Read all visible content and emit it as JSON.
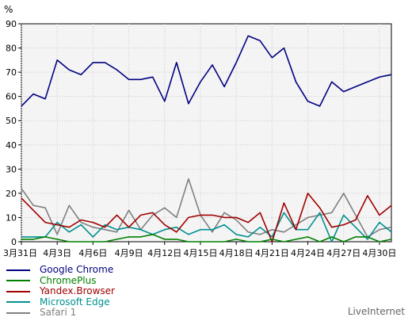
{
  "chart_data": {
    "type": "line",
    "title": "",
    "ylabel": "%",
    "xlabel": "",
    "ylim": [
      0,
      90
    ],
    "yticks": [
      0,
      10,
      20,
      30,
      40,
      50,
      60,
      70,
      80,
      90
    ],
    "grid": true,
    "x": [
      "3月31日",
      "4月1日",
      "4月2日",
      "4月3日",
      "4月4日",
      "4月5日",
      "4月6日",
      "4月7日",
      "4月8日",
      "4月9日",
      "4月10日",
      "4月11日",
      "4月12日",
      "4月13日",
      "4月14日",
      "4月15日",
      "4月16日",
      "4月17日",
      "4月18日",
      "4月19日",
      "4月20日",
      "4月21日",
      "4月22日",
      "4月23日",
      "4月24日",
      "4月25日",
      "4月26日",
      "4月27日",
      "4月28日",
      "4月29日",
      "4月30日",
      "5月1日"
    ],
    "xtick_labels": [
      "3月31日",
      "4月3日",
      "4月6日",
      "4月9日",
      "4月12日",
      "4月15日",
      "4月18日",
      "4月21日",
      "4月24日",
      "4月27日",
      "4月30日"
    ],
    "xtick_indices": [
      0,
      3,
      6,
      9,
      12,
      15,
      18,
      21,
      24,
      27,
      30
    ],
    "series": [
      {
        "name": "Google Chrome",
        "color": "#000080",
        "values": [
          56,
          61,
          59,
          75,
          71,
          69,
          74,
          74,
          71,
          67,
          67,
          68,
          58,
          74,
          57,
          66,
          73,
          64,
          74,
          85,
          83,
          76,
          80,
          66,
          58,
          56,
          66,
          62,
          64,
          66,
          68,
          69
        ]
      },
      {
        "name": "ChromePlus",
        "color": "#008000",
        "values": [
          1,
          1,
          2,
          1,
          0,
          0,
          0,
          0,
          1,
          2,
          2,
          3,
          1,
          1,
          0,
          0,
          0,
          0,
          1,
          0,
          0,
          1,
          0,
          1,
          2,
          0,
          2,
          0,
          2,
          2,
          0,
          1
        ]
      },
      {
        "name": "Yandex.Browser",
        "color": "#a00000",
        "values": [
          18,
          13,
          8,
          7,
          6,
          9,
          8,
          6,
          11,
          6,
          11,
          12,
          7,
          4,
          10,
          11,
          11,
          10,
          10,
          8,
          12,
          0,
          16,
          5,
          20,
          14,
          6,
          7,
          9,
          19,
          11,
          15
        ]
      },
      {
        "name": "Microsoft Edge",
        "color": "#009090",
        "values": [
          2,
          2,
          2,
          8,
          4,
          7,
          2,
          7,
          5,
          6,
          5,
          3,
          5,
          6,
          3,
          5,
          5,
          7,
          3,
          2,
          6,
          2,
          12,
          5,
          5,
          12,
          0,
          11,
          6,
          1,
          8,
          4
        ]
      },
      {
        "name": "Safari 1",
        "color": "#808080",
        "values": [
          22,
          15,
          14,
          3,
          15,
          8,
          6,
          5,
          4,
          13,
          5,
          11,
          14,
          10,
          26,
          11,
          4,
          12,
          9,
          4,
          3,
          5,
          4,
          7,
          10,
          11,
          12,
          20,
          11,
          2,
          5,
          6
        ]
      }
    ]
  },
  "brand": "LiveInternet"
}
